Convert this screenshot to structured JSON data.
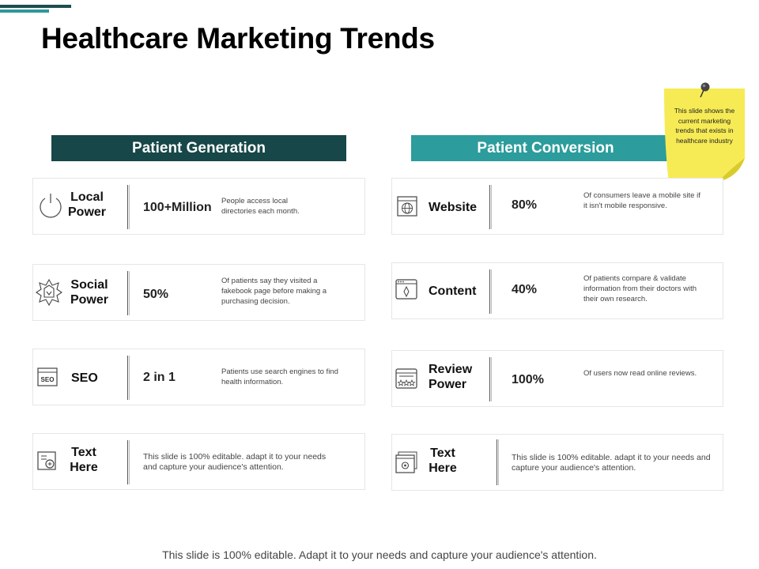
{
  "title": "Healthcare Marketing Trends",
  "left_header": "Patient Generation",
  "right_header": "Patient Conversion",
  "sticky_note": "This slide shows the current marketing trends that exists in healthcare industry",
  "left_cards": [
    {
      "label": "Local\nPower",
      "value": "100+Million",
      "desc": "People access local directories each month."
    },
    {
      "label": "Social\nPower",
      "value": "50%",
      "desc": "Of patients say they visited a fakebook page before making a purchasing decision."
    },
    {
      "label": "SEO",
      "value": "2 in 1",
      "desc": "Patients use search engines to find health information."
    },
    {
      "label": "Text\nHere",
      "desc": "This slide is 100% editable. adapt it to your needs and capture your audience's attention."
    }
  ],
  "right_cards": [
    {
      "label": "Website",
      "value": "80%",
      "desc": "Of consumers leave a mobile site if it isn't mobile responsive."
    },
    {
      "label": "Content",
      "value": "40%",
      "desc": "Of patients compare & validate information from their doctors with their own research."
    },
    {
      "label": "Review\nPower",
      "value": "100%",
      "desc": "Of users now read online reviews."
    },
    {
      "label": "Text\nHere",
      "desc": "This slide is 100% editable. adapt it to your needs and capture your audience's attention."
    }
  ],
  "footer": "This slide is 100% editable. Adapt it to your needs and capture your audience's attention.",
  "colors": {
    "dark_teal": "#174748",
    "teal": "#2c9c9c",
    "sticky_yellow": "#f6eb55"
  }
}
